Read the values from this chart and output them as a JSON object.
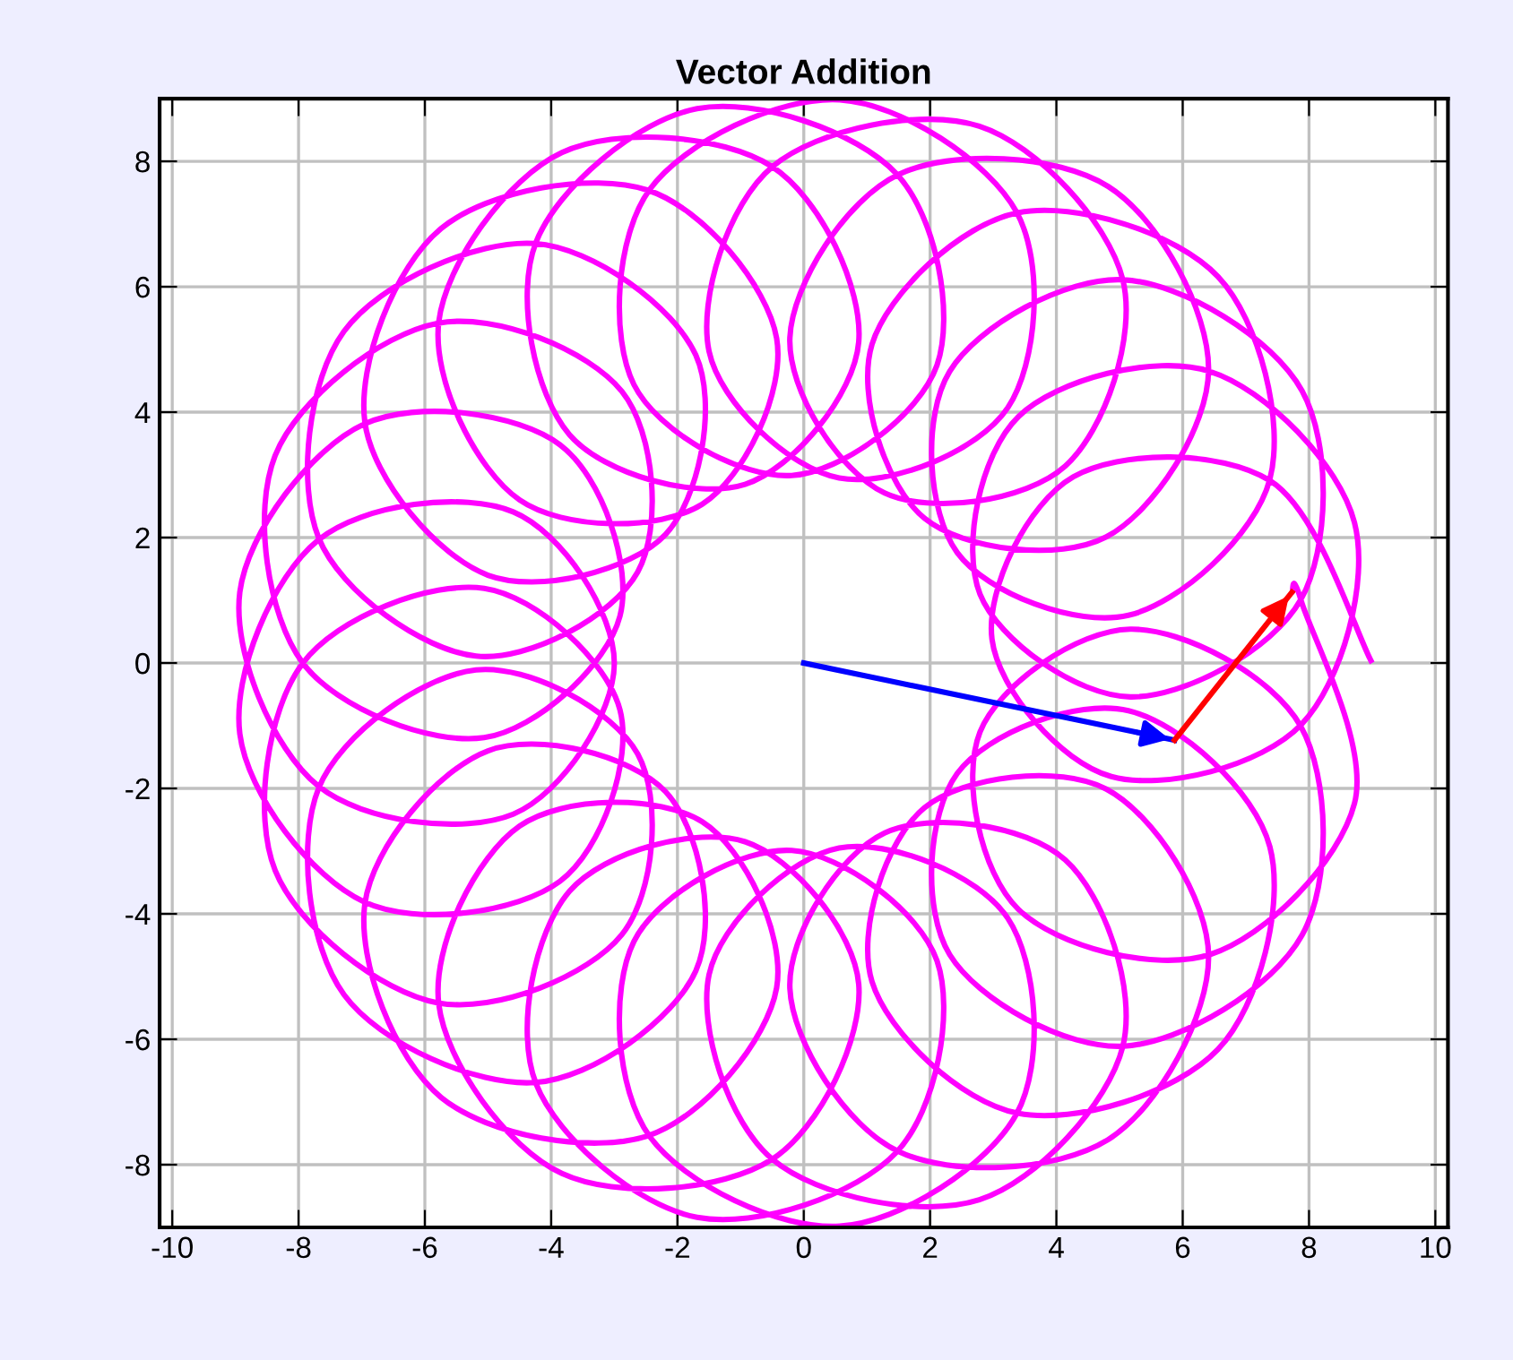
{
  "chart_data": {
    "type": "line",
    "title": "Vector Addition",
    "xlim": [
      -10.2,
      10.2
    ],
    "ylim": [
      -9,
      9
    ],
    "xticks": [
      -10,
      -8,
      -6,
      -4,
      -2,
      0,
      2,
      4,
      6,
      8,
      10
    ],
    "yticks": [
      -8,
      -6,
      -4,
      -2,
      0,
      2,
      4,
      6,
      8
    ],
    "grid": true,
    "legend": false,
    "marker": "none",
    "line_style": "solid",
    "series": [
      {
        "color": "#ff00ff",
        "x": [
          9,
          7.38,
          4.27,
          2.98,
          4.87,
          7.88,
          8.72,
          6.43,
          3.4,
          2.79,
          5.17,
          7.87,
          7.89,
          5.07,
          2.31,
          2.43,
          5.14,
          7.38,
          6.56,
          3.39,
          1.08,
          1.91,
          4.79,
          6.41,
          4.82,
          1.5,
          -0.22,
          1.28,
          4.14,
          5.05,
          2.78,
          -0.49,
          -1.5,
          0.56,
          3.23,
          3.37,
          0.57,
          -2.44,
          -2.69,
          -0.19,
          2.11,
          1.47,
          -1.69,
          -4.24,
          -3.71,
          -0.93,
          0.87,
          -0.51,
          -3.83,
          -5.78,
          -4.5,
          -1.61,
          -0.43,
          -2.47,
          -5.74,
          -6.95,
          -5.0,
          -2.19,
          -1.71,
          -4.26,
          -7.28,
          -7.68,
          -5.19,
          -2.63,
          -2.88,
          -5.79,
          -8.37,
          -7.94,
          -5.06,
          -2.91,
          -3.86,
          -6.96,
          -8.93,
          -7.69,
          -4.6,
          -3,
          -4.6,
          -7.69,
          -8.93,
          -6.96,
          -3.86,
          -2.91,
          -5.06,
          -7.94,
          -8.37,
          -5.79,
          -2.88,
          -2.63,
          -5.19,
          -7.68,
          -7.28,
          -4.26,
          -1.71,
          -2.19,
          -5.0,
          -6.95,
          -5.74,
          -2.47,
          -0.43,
          -1.61,
          -4.5,
          -5.78,
          -3.83,
          -0.51,
          0.87,
          -0.93,
          -3.71,
          -4.24,
          -1.69,
          1.47,
          2.11,
          -0.19,
          -2.69,
          -2.44,
          0.57,
          3.37,
          3.23,
          0.56,
          -1.5,
          -0.49,
          2.78,
          5.05,
          4.14,
          1.28,
          -0.22,
          1.5,
          4.82,
          6.41,
          4.79,
          1.91,
          1.08,
          3.39,
          6.56,
          7.38,
          5.14,
          2.43,
          2.31,
          5.07,
          7.89,
          7.87,
          5.17,
          2.79,
          3.4,
          6.43,
          8.72,
          7.88,
          7.73
        ],
        "values": [
          0,
          2.91,
          2.97,
          0.38,
          -1.81,
          -0.98,
          2.24,
          4.65,
          3.93,
          1.1,
          -0.54,
          1.01,
          4.34,
          6.11,
          4.65,
          1.76,
          0.76,
          2.93,
          6.16,
          7.18,
          5.08,
          2.31,
          2.01,
          4.68,
          7.6,
          7.79,
          5.19,
          2.71,
          3.14,
          6.12,
          8.56,
          7.92,
          4.97,
          2.95,
          4.07,
          7.19,
          8.98,
          7.55,
          4.44,
          2.99,
          4.75,
          7.8,
          8.84,
          6.71,
          3.64,
          2.85,
          5.12,
          7.92,
          8.14,
          5.44,
          2.6,
          2.53,
          5.18,
          7.54,
          6.93,
          3.84,
          1.4,
          2.05,
          4.91,
          6.69,
          5.29,
          1.99,
          0.11,
          1.45,
          4.33,
          5.42,
          3.31,
          0.01,
          -1.19,
          0.75,
          3.48,
          3.81,
          1.13,
          -1.96,
          -2.41,
          0,
          2.41,
          1.96,
          -1.13,
          -3.81,
          -3.48,
          -0.75,
          1.19,
          -0.01,
          -3.31,
          -5.42,
          -4.33,
          -1.45,
          -0.11,
          -1.99,
          -5.29,
          -6.69,
          -4.91,
          -2.05,
          -1.4,
          -3.84,
          -6.93,
          -7.54,
          -5.18,
          -2.53,
          -2.6,
          -5.44,
          -8.14,
          -7.92,
          -5.12,
          -2.85,
          -3.64,
          -6.71,
          -8.84,
          -7.8,
          -4.75,
          -2.99,
          -4.44,
          -7.55,
          -8.98,
          -7.19,
          -4.07,
          -2.95,
          -4.97,
          -7.92,
          -8.56,
          -6.12,
          -3.14,
          -2.71,
          -5.19,
          -7.79,
          -7.6,
          -4.68,
          -2.01,
          -2.31,
          -5.08,
          -7.18,
          -6.16,
          -2.93,
          -0.76,
          -1.76,
          -4.65,
          -6.11,
          -4.34,
          -1.01,
          0.54,
          -1.1,
          -3.93,
          -4.65,
          -2.24,
          0.98,
          1.13
        ]
      },
      {
        "color": "#0000ff",
        "x": [
          0,
          5.87
        ],
        "values": [
          0,
          -1.23
        ]
      },
      {
        "color": "#ff0000",
        "x": [
          5.87,
          7.73
        ],
        "values": [
          -1.23,
          1.13
        ]
      }
    ]
  }
}
